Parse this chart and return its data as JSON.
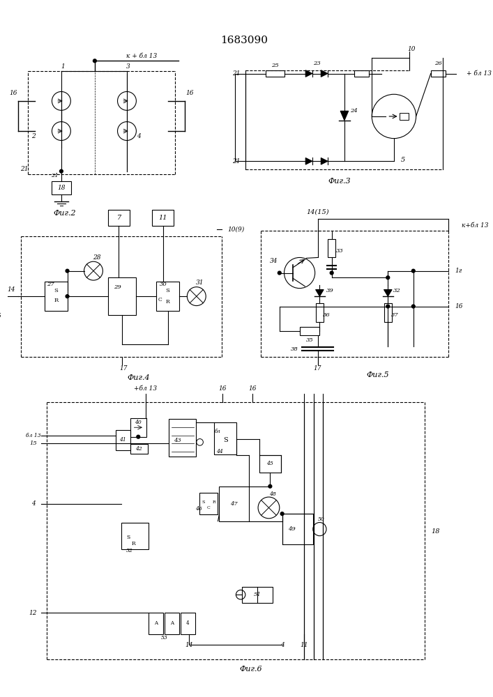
{
  "title": "1683090",
  "bg_color": "#ffffff",
  "line_color": "#000000",
  "fig_labels": [
    "Фиг.2",
    "Фиг.3",
    "Фиг.4",
    "Фиг.5",
    "Фиг.6"
  ]
}
